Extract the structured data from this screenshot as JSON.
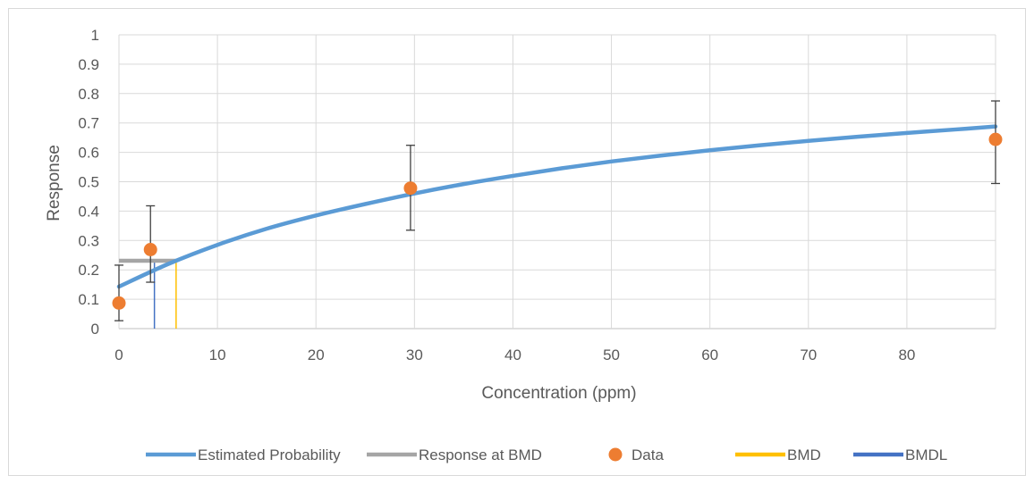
{
  "chart_data": {
    "type": "scatter",
    "xlabel": "Concentration (ppm)",
    "ylabel": "Response",
    "xlim": [
      0,
      89
    ],
    "ylim": [
      0,
      1
    ],
    "x_ticks": [
      "0",
      "10",
      "20",
      "30",
      "40",
      "50",
      "60",
      "70",
      "80"
    ],
    "y_ticks": [
      "0",
      "0.1",
      "0.2",
      "0.3",
      "0.4",
      "0.5",
      "0.6",
      "0.7",
      "0.8",
      "0.9",
      "1"
    ],
    "grid": true,
    "legend_position": "bottom",
    "series": [
      {
        "name": "Estimated Probability",
        "kind": "line",
        "color": "#5b9bd5",
        "x": [
          0,
          5,
          10,
          15,
          20,
          25,
          30,
          35,
          40,
          45,
          50,
          55,
          60,
          65,
          70,
          75,
          80,
          85,
          89
        ],
        "y": [
          0.143,
          0.22,
          0.285,
          0.34,
          0.385,
          0.424,
          0.46,
          0.492,
          0.52,
          0.546,
          0.569,
          0.589,
          0.607,
          0.624,
          0.639,
          0.653,
          0.666,
          0.678,
          0.688
        ]
      },
      {
        "name": "Response at BMD",
        "kind": "line",
        "color": "#a5a5a5",
        "x": [
          0,
          5.8
        ],
        "y": [
          0.231,
          0.231
        ]
      },
      {
        "name": "Data",
        "kind": "scatter",
        "color": "#ed7d31",
        "x": [
          0,
          3.2,
          29.6,
          89
        ],
        "y": [
          0.087,
          0.269,
          0.478,
          0.644
        ],
        "err_low": [
          0.027,
          0.158,
          0.335,
          0.494
        ],
        "err_high": [
          0.216,
          0.418,
          0.624,
          0.775
        ]
      },
      {
        "name": "BMD",
        "kind": "vline",
        "color": "#ffc000",
        "x": [
          5.8,
          5.8
        ],
        "y": [
          0,
          0.231
        ]
      },
      {
        "name": "BMDL",
        "kind": "vline",
        "color": "#4472c4",
        "x": [
          3.6,
          3.6
        ],
        "y": [
          0,
          0.231
        ]
      }
    ]
  }
}
